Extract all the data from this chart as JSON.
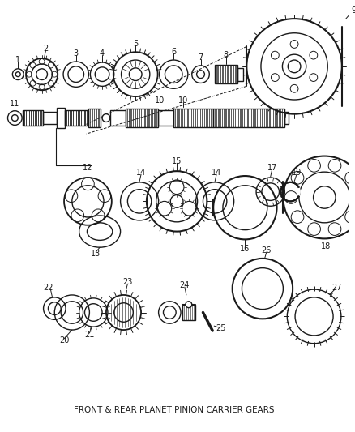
{
  "title": "FRONT & REAR PLANET PINION CARRIER GEARS",
  "background_color": "#ffffff",
  "line_color": "#1a1a1a",
  "figsize": [
    4.38,
    5.33
  ],
  "dpi": 100
}
